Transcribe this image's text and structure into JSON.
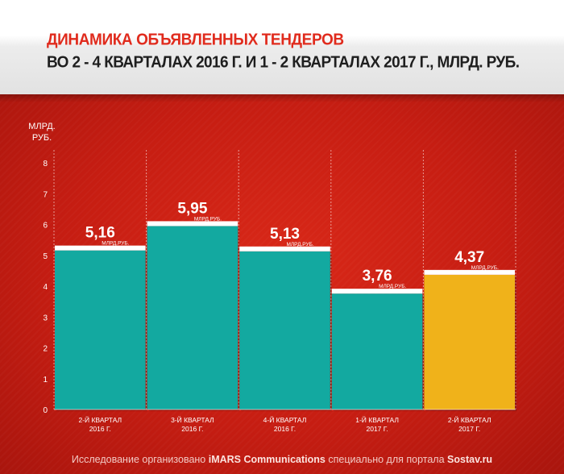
{
  "header": {
    "title_line1": "ДИНАМИКА ОБЪЯВЛЕННЫХ ТЕНДЕРОВ",
    "title_line2": "ВО 2 - 4 КВАРТАЛАХ 2016 Г.  И 1 - 2 КВАРТАЛАХ 2017  Г., МЛРД. РУБ."
  },
  "footer": {
    "part1": "Исследование организовано ",
    "brand": "iMARS Communications",
    "part2": " специально для портала ",
    "portal": "Sostav.ru"
  },
  "chart_data": {
    "type": "bar",
    "title": "ДИНАМИКА ОБЪЯВЛЕННЫХ ТЕНДЕРОВ",
    "subtitle": "ВО 2 - 4 КВАРТАЛАХ 2016 Г.  И 1 - 2 КВАРТАЛАХ 2017  Г., МЛРД. РУБ.",
    "ylabel_lines": [
      "МЛРД.",
      "РУБ."
    ],
    "xlabel": "",
    "ylim": [
      0,
      8
    ],
    "yticks": [
      0,
      1,
      2,
      3,
      4,
      5,
      6,
      7,
      8
    ],
    "grid": "vertical",
    "categories": [
      [
        "2-Й КВАРТАЛ",
        "2016 Г."
      ],
      [
        "3-Й КВАРТАЛ",
        "2016 Г."
      ],
      [
        "4-Й КВАРТАЛ",
        "2016 Г."
      ],
      [
        "1-Й КВАРТАЛ",
        "2017 Г."
      ],
      [
        "2-Й КВАРТАЛ",
        "2017 Г."
      ]
    ],
    "values": [
      5.16,
      5.95,
      5.13,
      3.76,
      4.37
    ],
    "value_labels": [
      "5,16",
      "5,95",
      "5,13",
      "3,76",
      "4,37"
    ],
    "unit_label": "МЛРД.РУБ.",
    "bar_colors": [
      "#13a9a0",
      "#13a9a0",
      "#13a9a0",
      "#13a9a0",
      "#f0b21a"
    ],
    "cap_color": "#ffffff"
  }
}
